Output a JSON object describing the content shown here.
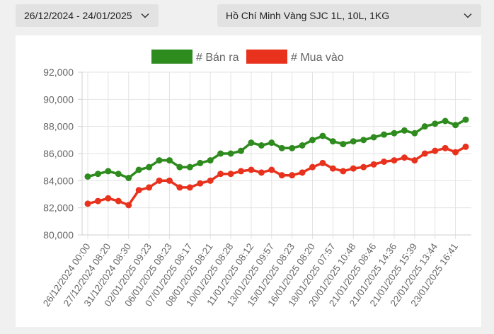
{
  "filters": {
    "date_range": "26/12/2024 - 24/01/2025",
    "product": "Hồ Chí Minh Vàng SJC 1L, 10L, 1KG"
  },
  "chart_data": {
    "type": "line",
    "legend_position": "top-center",
    "grid": true,
    "ylim": [
      80000,
      92000
    ],
    "yticks": [
      "80,000",
      "82,000",
      "84,000",
      "86,000",
      "88,000",
      "90,000",
      "92,000"
    ],
    "x": [
      "26/12/2024 00:00",
      "",
      "27/12/2024 08:20",
      "",
      "31/12/2024 08:30",
      "",
      "02/01/2025 09:23",
      "",
      "06/01/2025 08:23",
      "",
      "07/01/2025 08:17",
      "",
      "08/01/2025 08:21",
      "",
      "10/01/2025 08:28",
      "",
      "11/01/2025 08:12",
      "",
      "13/01/2025 09:57",
      "",
      "15/01/2025 08:23",
      "",
      "16/01/2025 08:20",
      "",
      "18/01/2025 07:57",
      "",
      "20/01/2025 10:48",
      "",
      "21/01/2025 08:46",
      "",
      "21/01/2025 14:36",
      "",
      "21/01/2025 15:39",
      "",
      "22/01/2025 13:44",
      "",
      "23/01/2025 16:41",
      ""
    ],
    "series": [
      {
        "name": "# Bán ra",
        "color": "#2e8b1e",
        "values": [
          84300,
          84500,
          84700,
          84500,
          84200,
          84800,
          85000,
          85500,
          85500,
          85000,
          85000,
          85300,
          85500,
          86000,
          86000,
          86200,
          86800,
          86600,
          86800,
          86400,
          86400,
          86600,
          87000,
          87300,
          86900,
          86700,
          86900,
          87000,
          87200,
          87400,
          87500,
          87700,
          87500,
          88000,
          88200,
          88400,
          88100,
          88500
        ]
      },
      {
        "name": "# Mua vào",
        "color": "#e8321e",
        "values": [
          82300,
          82500,
          82700,
          82500,
          82200,
          83300,
          83500,
          84000,
          84000,
          83500,
          83500,
          83800,
          84000,
          84500,
          84500,
          84700,
          84800,
          84600,
          84800,
          84400,
          84400,
          84600,
          85000,
          85300,
          84900,
          84700,
          84900,
          85000,
          85200,
          85400,
          85500,
          85700,
          85500,
          86000,
          86200,
          86400,
          86100,
          86500
        ]
      }
    ]
  }
}
